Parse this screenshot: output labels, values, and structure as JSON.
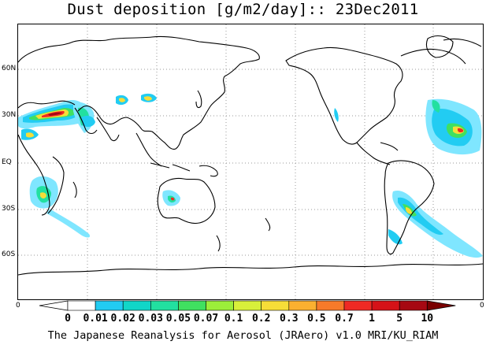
{
  "header": {
    "title": "Dust deposition [g/m2/day]:: 23Dec2011"
  },
  "map": {
    "lat_labels": [
      "60N",
      "30N",
      "EQ",
      "30S",
      "60S"
    ],
    "edge_left_label": "0",
    "edge_right_label": "0"
  },
  "colorbar": {
    "ticks": [
      "0",
      "0.01",
      "0.02",
      "0.03",
      "0.05",
      "0.07",
      "0.1",
      "0.2",
      "0.3",
      "0.5",
      "0.7",
      "1",
      "5",
      "10"
    ],
    "colors": [
      "#ffffff",
      "#7fe6ff",
      "#22ccf2",
      "#11d6c8",
      "#22e0a0",
      "#40e060",
      "#9cee3a",
      "#d8f03a",
      "#f6dd38",
      "#fbb030",
      "#f77a2a",
      "#ef2a24",
      "#d51218",
      "#a60812",
      "#7a0000"
    ]
  },
  "footer": {
    "credit": "The Japanese Reanalysis for Aerosol (JRAero) v1.0 MRI/KU_RIAM"
  }
}
